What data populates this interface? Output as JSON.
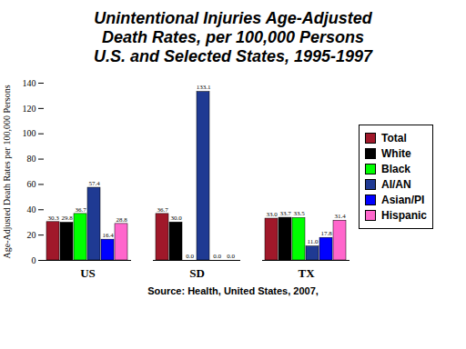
{
  "chart_data": {
    "type": "bar",
    "title": "Unintentional Injuries Age-Adjusted Death Rates, per 100,000 Persons",
    "subtitle": "U.S. and Selected States, 1995-1997",
    "source": "Source: Health, United States, 2007,",
    "y_label": "Age-Adjusted Death Rates per 100,000 Persons",
    "categories": [
      "US",
      "SD",
      "TX"
    ],
    "series": [
      {
        "name": "Total",
        "color": "#a0182a",
        "values": [
          30.3,
          36.7,
          33.0
        ],
        "value_labels": [
          "30.3",
          "36.7",
          "33.0"
        ]
      },
      {
        "name": "White",
        "color": "#000000",
        "values": [
          29.8,
          30.0,
          33.7
        ],
        "value_labels": [
          "29.8",
          "30.0",
          "33.7"
        ]
      },
      {
        "name": "Black",
        "color": "#00ff00",
        "values": [
          36.7,
          0.0,
          33.5
        ],
        "value_labels": [
          "36.7",
          "0.0",
          "33.5"
        ]
      },
      {
        "name": "AI/AN",
        "color": "#1f3a93",
        "values": [
          57.4,
          133.1,
          11.0
        ],
        "value_labels": [
          "57.4",
          "133.1",
          "11.0"
        ]
      },
      {
        "name": "Asian/PI",
        "color": "#0000ff",
        "values": [
          16.4,
          0.0,
          17.8
        ],
        "value_labels": [
          "16.4",
          "0.0",
          "17.8"
        ]
      },
      {
        "name": "Hispanic",
        "color": "#ff66cc",
        "values": [
          28.8,
          0.0,
          31.4
        ],
        "value_labels": [
          "28.8",
          "0.0",
          "31.4"
        ]
      }
    ],
    "ylim": [
      0,
      140
    ],
    "yticks": [
      0,
      20,
      40,
      60,
      80,
      100,
      120,
      140
    ],
    "legend": "right",
    "data_labels": true
  }
}
